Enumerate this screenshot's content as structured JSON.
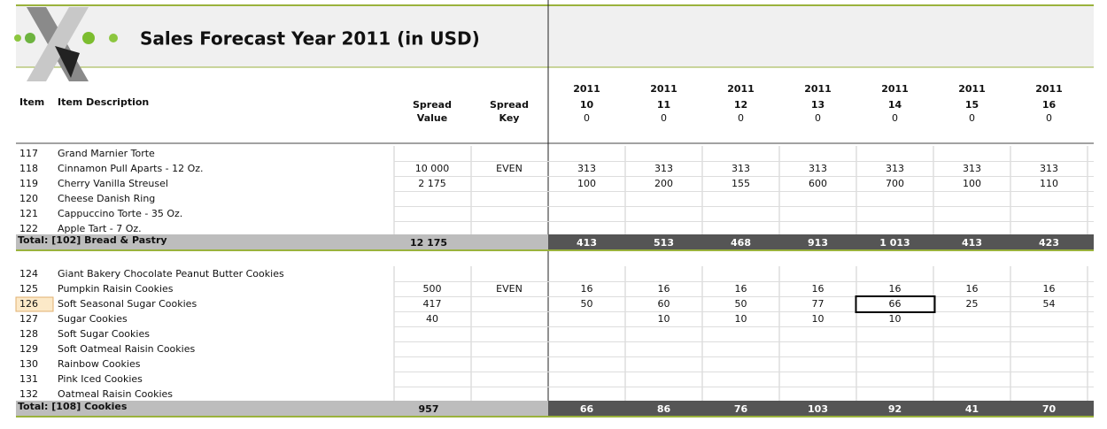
{
  "header": {
    "title": "Sales Forecast Year 2011 (in USD)"
  },
  "columns": {
    "item": "Item",
    "description": "Item Description",
    "spread_value": [
      "Spread",
      "Value"
    ],
    "spread_key": [
      "Spread",
      "Key"
    ],
    "periods": [
      {
        "year": 2011,
        "period": 10,
        "value": 0
      },
      {
        "year": 2011,
        "period": 11,
        "value": 0
      },
      {
        "year": 2011,
        "period": 12,
        "value": 0
      },
      {
        "year": 2011,
        "period": 13,
        "value": 0
      },
      {
        "year": 2011,
        "period": 14,
        "value": 0
      },
      {
        "year": 2011,
        "period": 15,
        "value": 0
      },
      {
        "year": 2011,
        "period": 16,
        "value": 0
      }
    ]
  },
  "groups": [
    {
      "rows": [
        {
          "item": 117,
          "description": "Grand Marnier Torte",
          "spread_value": null,
          "spread_key": null,
          "periods": [
            null,
            null,
            null,
            null,
            null,
            null,
            null
          ]
        },
        {
          "item": 118,
          "description": "Cinnamon Pull Aparts - 12 Oz.",
          "spread_value": "10 000",
          "spread_key": "EVEN",
          "periods": [
            313,
            313,
            313,
            313,
            313,
            313,
            313
          ]
        },
        {
          "item": 119,
          "description": "Cherry Vanilla Streusel",
          "spread_value": "2 175",
          "spread_key": null,
          "periods": [
            100,
            200,
            155,
            600,
            700,
            100,
            110
          ]
        },
        {
          "item": 120,
          "description": "Cheese Danish Ring",
          "spread_value": null,
          "spread_key": null,
          "periods": [
            null,
            null,
            null,
            null,
            null,
            null,
            null
          ]
        },
        {
          "item": 121,
          "description": "Cappuccino Torte - 35 Oz.",
          "spread_value": null,
          "spread_key": null,
          "periods": [
            null,
            null,
            null,
            null,
            null,
            null,
            null
          ]
        },
        {
          "item": 122,
          "description": "Apple Tart - 7 Oz.",
          "spread_value": null,
          "spread_key": null,
          "periods": [
            null,
            null,
            null,
            null,
            null,
            null,
            null
          ]
        }
      ],
      "total": {
        "label": "Total: [102] Bread & Pastry",
        "spread_value": "12 175",
        "periods": [
          413,
          513,
          468,
          913,
          "1 013",
          413,
          423
        ]
      }
    },
    {
      "rows": [
        {
          "item": 124,
          "description": "Giant Bakery Chocolate Peanut Butter Cookies",
          "spread_value": null,
          "spread_key": null,
          "periods": [
            null,
            null,
            null,
            null,
            null,
            null,
            null
          ]
        },
        {
          "item": 125,
          "description": "Pumpkin Raisin Cookies",
          "spread_value": 500,
          "spread_key": "EVEN",
          "periods": [
            16,
            16,
            16,
            16,
            16,
            16,
            16
          ]
        },
        {
          "item": 126,
          "description": "Soft Seasonal Sugar Cookies",
          "spread_value": 417,
          "spread_key": null,
          "periods": [
            50,
            60,
            50,
            77,
            66,
            25,
            54
          ]
        },
        {
          "item": 127,
          "description": "Sugar Cookies",
          "spread_value": 40,
          "spread_key": null,
          "periods": [
            null,
            10,
            10,
            10,
            10,
            null,
            null
          ]
        },
        {
          "item": 128,
          "description": "Soft Sugar Cookies",
          "spread_value": null,
          "spread_key": null,
          "periods": [
            null,
            null,
            null,
            null,
            null,
            null,
            null
          ]
        },
        {
          "item": 129,
          "description": "Soft Oatmeal Raisin Cookies",
          "spread_value": null,
          "spread_key": null,
          "periods": [
            null,
            null,
            null,
            null,
            null,
            null,
            null
          ]
        },
        {
          "item": 130,
          "description": "Rainbow Cookies",
          "spread_value": null,
          "spread_key": null,
          "periods": [
            null,
            null,
            null,
            null,
            null,
            null,
            null
          ]
        },
        {
          "item": 131,
          "description": "Pink Iced Cookies",
          "spread_value": null,
          "spread_key": null,
          "periods": [
            null,
            null,
            null,
            null,
            null,
            null,
            null
          ]
        },
        {
          "item": 132,
          "description": "Oatmeal Raisin Cookies",
          "spread_value": null,
          "spread_key": null,
          "periods": [
            null,
            null,
            null,
            null,
            null,
            null,
            null
          ]
        }
      ],
      "total": {
        "label": "Total: [108] Cookies",
        "spread_value": 957,
        "periods": [
          66,
          86,
          76,
          103,
          92,
          41,
          70
        ]
      }
    }
  ]
}
